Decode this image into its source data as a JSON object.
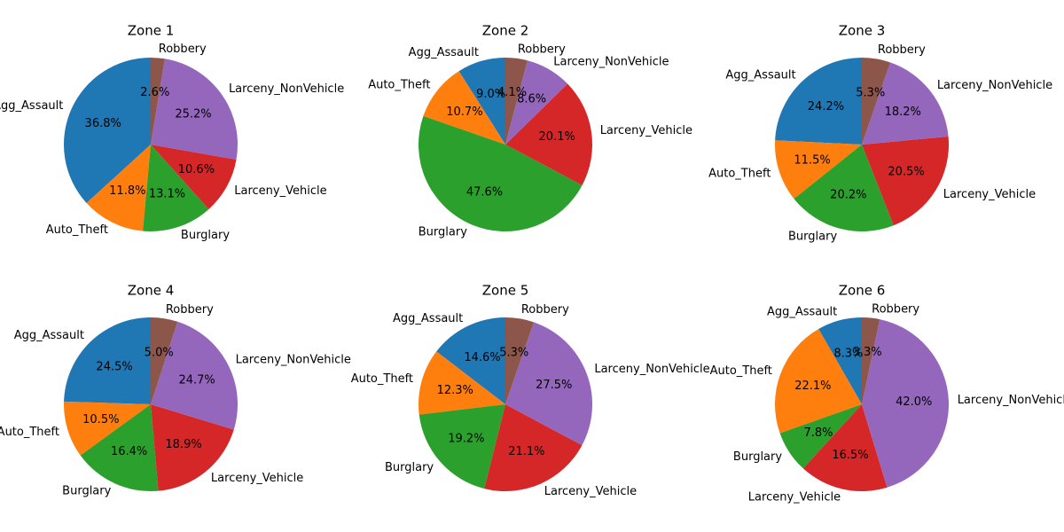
{
  "chart_data": [
    {
      "type": "pie",
      "title": "Zone 1",
      "start_angle": 90,
      "categories": [
        "Agg_Assault",
        "Auto_Theft",
        "Burglary",
        "Larceny_Vehicle",
        "Larceny_NonVehicle",
        "Robbery"
      ],
      "values": [
        36.8,
        11.8,
        13.1,
        10.6,
        25.2,
        2.6
      ],
      "value_labels": [
        "36.8%",
        "11.8%",
        "13.1%",
        "10.6%",
        "25.2%",
        "2.6%"
      ]
    },
    {
      "type": "pie",
      "title": "Zone 2",
      "start_angle": 90,
      "categories": [
        "Agg_Assault",
        "Auto_Theft",
        "Burglary",
        "Larceny_Vehicle",
        "Larceny_NonVehicle",
        "Robbery"
      ],
      "values": [
        9.0,
        10.7,
        47.6,
        20.1,
        8.6,
        4.1
      ],
      "value_labels": [
        "9.0%",
        "10.7%",
        "47.6%",
        "20.1%",
        "8.6%",
        "4.1%"
      ]
    },
    {
      "type": "pie",
      "title": "Zone 3",
      "start_angle": 90,
      "categories": [
        "Agg_Assault",
        "Auto_Theft",
        "Burglary",
        "Larceny_Vehicle",
        "Larceny_NonVehicle",
        "Robbery"
      ],
      "values": [
        24.2,
        11.5,
        20.2,
        20.5,
        18.2,
        5.3
      ],
      "value_labels": [
        "24.2%",
        "11.5%",
        "20.2%",
        "20.5%",
        "18.2%",
        "5.3%"
      ]
    },
    {
      "type": "pie",
      "title": "Zone 4",
      "start_angle": 90,
      "categories": [
        "Agg_Assault",
        "Auto_Theft",
        "Burglary",
        "Larceny_Vehicle",
        "Larceny_NonVehicle",
        "Robbery"
      ],
      "values": [
        24.5,
        10.5,
        16.4,
        18.9,
        24.7,
        5.0
      ],
      "value_labels": [
        "24.5%",
        "10.5%",
        "16.4%",
        "18.9%",
        "24.7%",
        "5.0%"
      ]
    },
    {
      "type": "pie",
      "title": "Zone 5",
      "start_angle": 90,
      "categories": [
        "Agg_Assault",
        "Auto_Theft",
        "Burglary",
        "Larceny_Vehicle",
        "Larceny_NonVehicle",
        "Robbery"
      ],
      "values": [
        14.6,
        12.3,
        19.2,
        21.1,
        27.5,
        5.3
      ],
      "value_labels": [
        "14.6%",
        "12.3%",
        "19.2%",
        "21.1%",
        "27.5%",
        "5.3%"
      ]
    },
    {
      "type": "pie",
      "title": "Zone 6",
      "start_angle": 90,
      "categories": [
        "Agg_Assault",
        "Auto_Theft",
        "Burglary",
        "Larceny_Vehicle",
        "Larceny_NonVehicle",
        "Robbery"
      ],
      "values": [
        8.3,
        22.1,
        7.8,
        16.5,
        42.0,
        3.3
      ],
      "value_labels": [
        "8.3%",
        "22.1%",
        "7.8%",
        "16.5%",
        "42.0%",
        "3.3%"
      ]
    }
  ],
  "colors": {
    "Agg_Assault": "#1f77b4",
    "Auto_Theft": "#ff7f0e",
    "Burglary": "#2ca02c",
    "Larceny_Vehicle": "#d62728",
    "Larceny_NonVehicle": "#9467bd",
    "Robbery": "#8c564b"
  }
}
